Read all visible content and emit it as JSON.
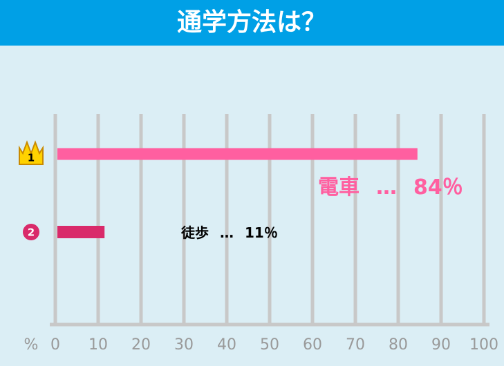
{
  "chart_data": {
    "type": "hbar",
    "title": "通学方法は？",
    "categories": [
      "電車",
      "徒歩"
    ],
    "ranks": [
      "1",
      "2"
    ],
    "separator": "…",
    "values": [
      84,
      11
    ],
    "value_labels": [
      "84％",
      "11％"
    ],
    "colors": [
      "#ff5fa0",
      "#d92a6a"
    ],
    "x_axis_label": "%",
    "xlim": [
      0,
      100
    ],
    "xticks": [
      0,
      10,
      20,
      30,
      40,
      50,
      60,
      70,
      80,
      90,
      100
    ],
    "grid": true
  }
}
